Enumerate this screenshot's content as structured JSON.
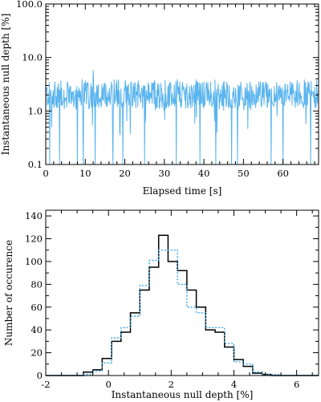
{
  "chart_data": [
    {
      "type": "line",
      "title": "",
      "xlabel": "Elapsed time [s]",
      "ylabel": "Instantaneous null depth [%]",
      "xlim": [
        0,
        69
      ],
      "ylim": [
        0.1,
        100
      ],
      "y_scale": "log",
      "grid": false,
      "x_ticks": [
        0,
        10,
        20,
        30,
        40,
        50,
        60
      ],
      "x_tick_labels": [
        "0",
        "10",
        "20",
        "30",
        "40",
        "50",
        "60"
      ],
      "y_ticks": [
        0.1,
        1,
        10,
        100
      ],
      "y_tick_labels": [
        "0.1",
        "1.0",
        "10.0",
        "100.0"
      ],
      "series": [
        {
          "color": "#5ab4ee",
          "sample_interval_s": 0.1,
          "baseline_median": 2.0,
          "typical_max": 4.0,
          "peak": {
            "x": 12,
            "y": 5.8
          },
          "dips_to_axis_floor_at_s": [
            1,
            3.5,
            8,
            9.5,
            12.5,
            17,
            19.5,
            25,
            33,
            39,
            43,
            47,
            48.5,
            57,
            60,
            67
          ]
        }
      ]
    },
    {
      "type": "step",
      "title": "",
      "xlabel": "Instantaneous null depth [%]",
      "ylabel": "Number of occurence",
      "xlim": [
        -2,
        6.7
      ],
      "ylim": [
        0,
        145
      ],
      "grid": false,
      "x_ticks": [
        -2,
        0,
        2,
        4,
        6
      ],
      "x_tick_labels": [
        "-2",
        "0",
        "2",
        "4",
        "6"
      ],
      "y_ticks": [
        0,
        20,
        40,
        60,
        80,
        100,
        120,
        140
      ],
      "y_tick_labels": [
        "0",
        "20",
        "40",
        "60",
        "80",
        "100",
        "120",
        "140"
      ],
      "bin_edges": [
        -2.0,
        -1.7,
        -1.4,
        -1.1,
        -0.8,
        -0.5,
        -0.2,
        0.1,
        0.4,
        0.7,
        1.0,
        1.3,
        1.6,
        1.9,
        2.2,
        2.5,
        2.8,
        3.1,
        3.4,
        3.7,
        4.0,
        4.3,
        4.6,
        4.9,
        5.2,
        5.5,
        5.8,
        6.1,
        6.4,
        6.7
      ],
      "series": [
        {
          "style": "solid",
          "color": "#000000",
          "values": [
            0,
            0,
            0,
            0,
            3,
            5,
            15,
            30,
            38,
            55,
            75,
            95,
            123,
            100,
            92,
            75,
            60,
            40,
            38,
            25,
            14,
            8,
            2,
            1,
            0,
            0,
            0,
            0,
            0
          ]
        },
        {
          "style": "dotted",
          "color": "#39a6e6",
          "values": [
            0,
            0,
            0,
            0,
            1,
            4,
            11,
            33,
            42,
            52,
            79,
            101,
            110,
            110,
            80,
            60,
            55,
            42,
            42,
            28,
            12,
            10,
            3,
            1,
            1,
            0,
            0,
            0,
            0
          ]
        }
      ]
    }
  ]
}
